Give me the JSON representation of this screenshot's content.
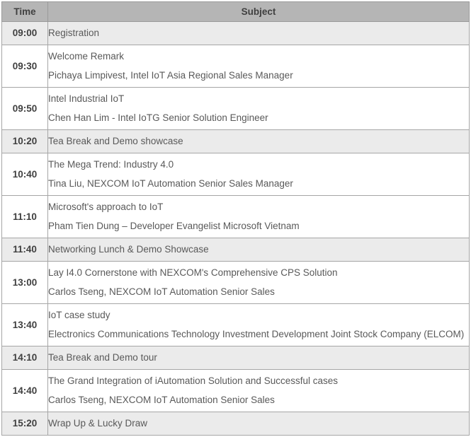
{
  "table": {
    "columns": [
      {
        "key": "time",
        "label": "Time"
      },
      {
        "key": "subject",
        "label": "Subject"
      }
    ],
    "rows": [
      {
        "time": "09:00",
        "shaded": true,
        "lines": [
          "Registration"
        ]
      },
      {
        "time": "09:30",
        "shaded": false,
        "lines": [
          "Welcome Remark",
          "Pichaya Limpivest, Intel IoT Asia Regional Sales Manager"
        ]
      },
      {
        "time": "09:50",
        "shaded": false,
        "lines": [
          "Intel Industrial IoT",
          "Chen Han Lim - Intel IoTG Senior Solution Engineer"
        ]
      },
      {
        "time": "10:20",
        "shaded": true,
        "lines": [
          "Tea Break and Demo showcase"
        ]
      },
      {
        "time": "10:40",
        "shaded": false,
        "lines": [
          "The Mega Trend: Industry 4.0",
          "Tina Liu, NEXCOM IoT Automation Senior Sales Manager"
        ]
      },
      {
        "time": "11:10",
        "shaded": false,
        "lines": [
          "Microsoft's approach to IoT",
          "Pham Tien Dung – Developer Evangelist Microsoft Vietnam"
        ]
      },
      {
        "time": "11:40",
        "shaded": true,
        "lines": [
          "Networking Lunch & Demo Showcase"
        ]
      },
      {
        "time": "13:00",
        "shaded": false,
        "lines": [
          "Lay I4.0 Cornerstone with NEXCOM's Comprehensive CPS Solution",
          "Carlos Tseng, NEXCOM IoT Automation Senior Sales"
        ]
      },
      {
        "time": "13:40",
        "shaded": false,
        "lines": [
          "IoT case study",
          "Electronics Communications Technology Investment Development Joint Stock Company (ELCOM)"
        ]
      },
      {
        "time": "14:10",
        "shaded": true,
        "lines": [
          "Tea Break and Demo tour"
        ]
      },
      {
        "time": "14:40",
        "shaded": false,
        "lines": [
          "The Grand Integration of iAutomation Solution and Successful cases",
          "Carlos Tseng, NEXCOM IoT Automation Senior Sales"
        ]
      },
      {
        "time": "15:20",
        "shaded": true,
        "lines": [
          "Wrap Up & Lucky Draw"
        ]
      }
    ]
  },
  "colors": {
    "header_background": "#b5b5b5",
    "header_text": "#404040",
    "shaded_row_background": "#ebebeb",
    "row_background": "#ffffff",
    "border": "#a6a6a6",
    "time_text": "#404040",
    "subject_text": "#595959"
  }
}
